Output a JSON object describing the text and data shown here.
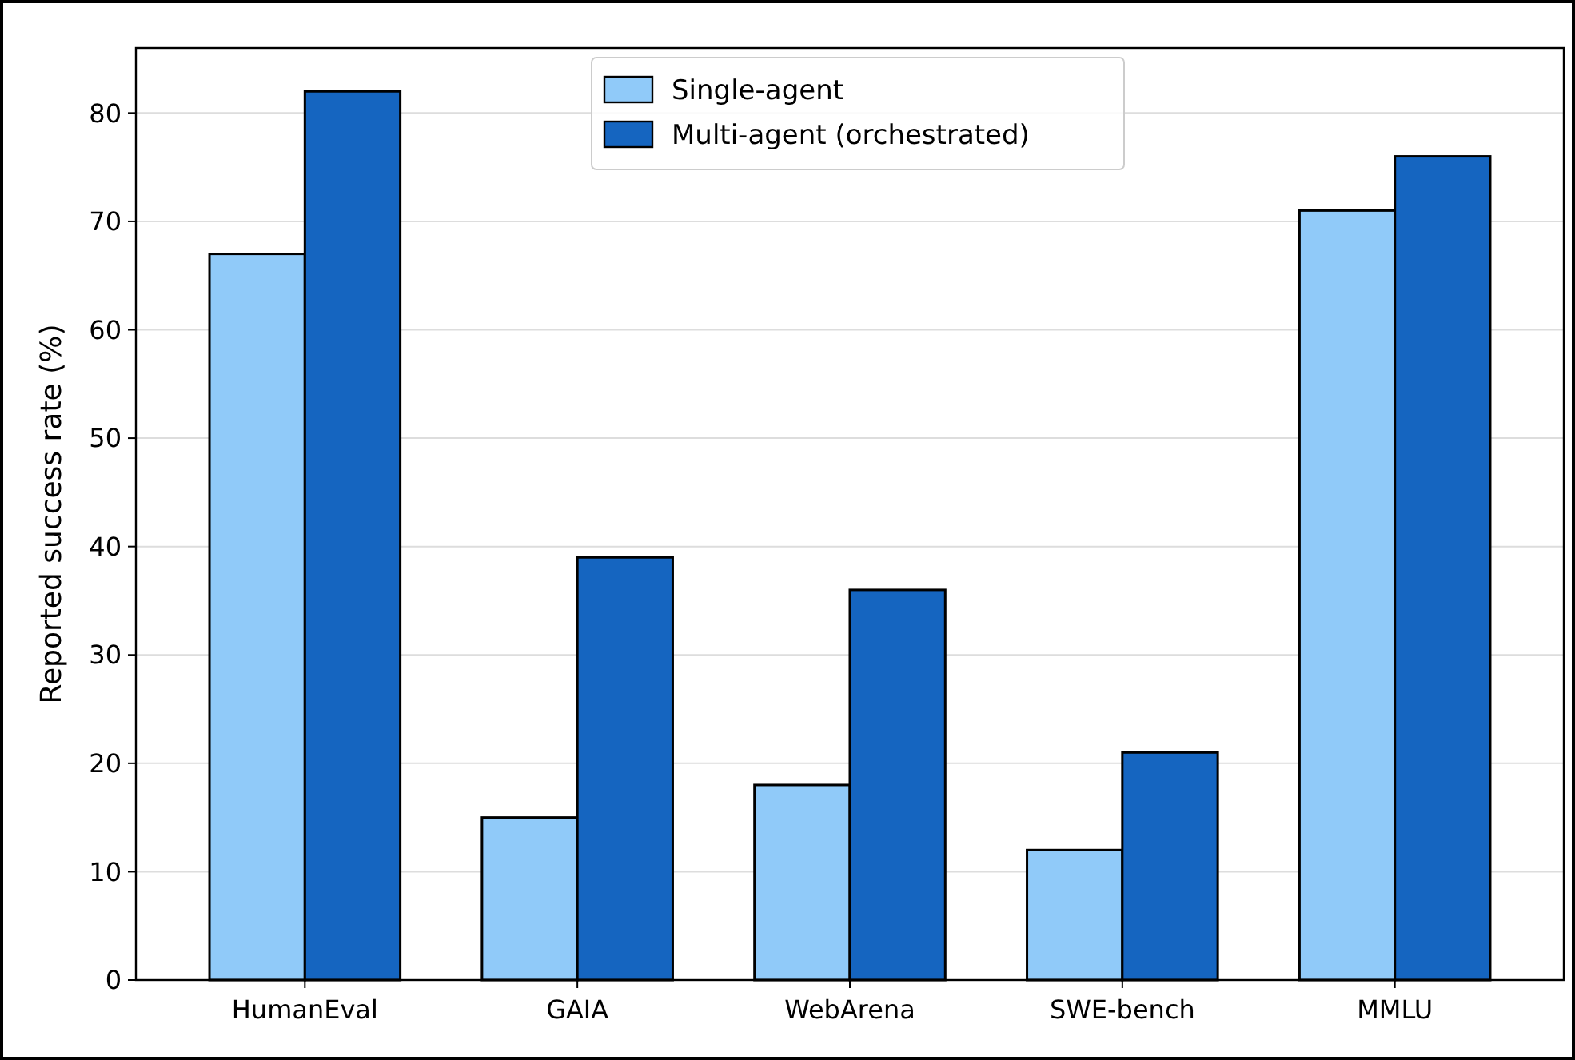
{
  "chart_data": {
    "type": "bar",
    "ylabel": "Reported success rate (%)",
    "categories": [
      "HumanEval",
      "GAIA",
      "WebArena",
      "SWE-bench",
      "MMLU"
    ],
    "series": [
      {
        "name": "Single-agent",
        "color": "#90caf9",
        "values": [
          67,
          15,
          18,
          12,
          71
        ]
      },
      {
        "name": "Multi-agent (orchestrated)",
        "color": "#1565c0",
        "values": [
          82,
          39,
          36,
          21,
          76
        ]
      }
    ],
    "ylim": [
      0,
      86
    ],
    "yticks": [
      0,
      10,
      20,
      30,
      40,
      50,
      60,
      70,
      80
    ],
    "grid": "y",
    "legend": "top"
  }
}
